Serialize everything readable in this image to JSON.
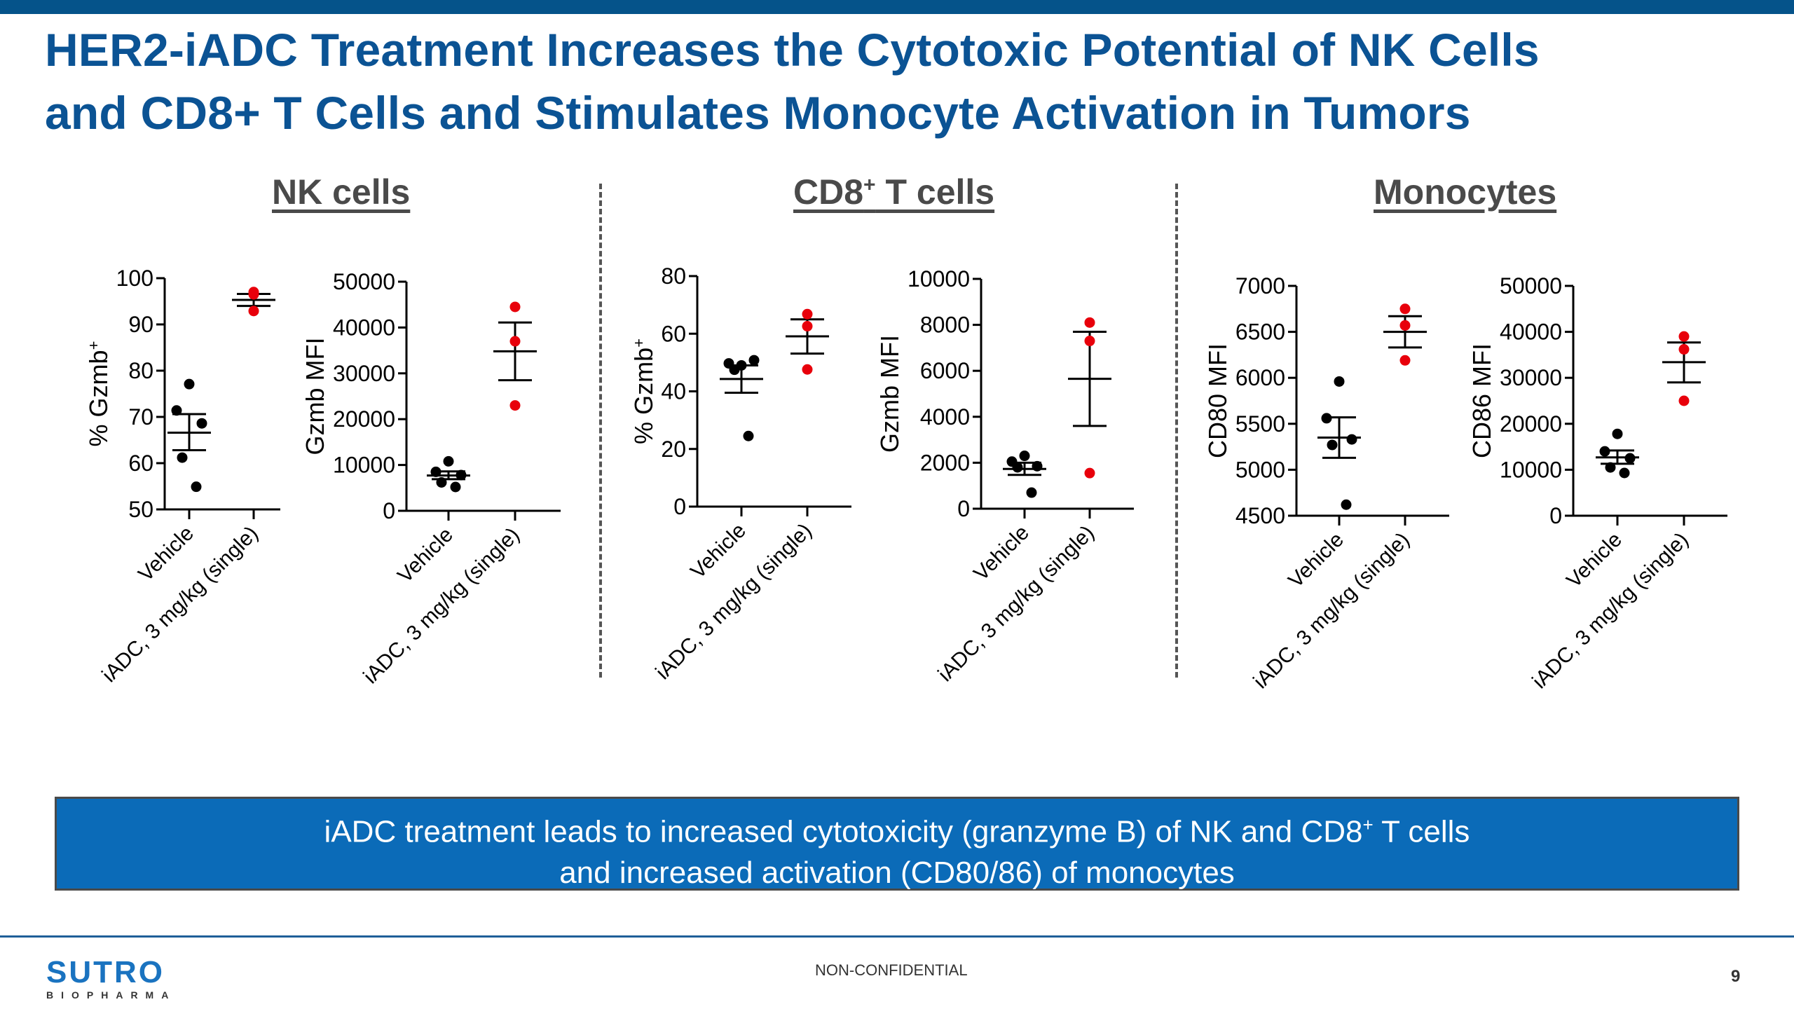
{
  "slide": {
    "title_line1": "HER2-iADC Treatment Increases the Cytotoxic Potential of NK Cells",
    "title_line2": "and CD8+ T Cells and Stimulates Monocyte Activation in Tumors",
    "sections": [
      {
        "label": "NK cells"
      },
      {
        "label_pre": "CD8",
        "label_sup": "+",
        "label_post": " T cells"
      },
      {
        "label": "Monocytes"
      }
    ],
    "banner": {
      "line1_pre": "iADC treatment leads to increased cytotoxicity (granzyme B) of NK and CD8",
      "line1_sup": "+",
      "line1_post": " T cells",
      "line2": "and increased activation (CD80/86) of monocytes"
    },
    "footer": {
      "logo_main": "SUTRO",
      "logo_sub": "BIOPHARMA",
      "classification": "NON-CONFIDENTIAL",
      "page_number": "9"
    },
    "colors": {
      "brand_blue": "#0b5394",
      "banner_blue": "#0b6bb8",
      "vehicle_color": "#000000",
      "iadc_color": "#e8000b"
    }
  },
  "chart_data": [
    {
      "id": "nk-pct",
      "type": "scatter",
      "section": "NK cells",
      "title": "",
      "xlabel": "",
      "ylabel": "% Gzmb",
      "ylabel_sup": "+",
      "categories": [
        "Vehicle",
        "iADC, 3 mg/kg (single)"
      ],
      "ylim": [
        50,
        100
      ],
      "yticks": [
        50,
        60,
        70,
        80,
        90,
        100
      ],
      "ytick_labels": [
        "50",
        "60",
        "70",
        "80",
        "90",
        "100"
      ],
      "series": [
        {
          "name": "Vehicle",
          "values": [
            77.1,
            71.4,
            68.6,
            61.2,
            54.9
          ],
          "mean": 66.6,
          "sem_upper": 70.6,
          "sem_lower": 62.8
        },
        {
          "name": "iADC, 3 mg/kg (single)",
          "values": [
            97.0,
            96.5,
            92.9
          ],
          "mean": 95.3,
          "sem_upper": 96.6,
          "sem_lower": 94.0
        }
      ]
    },
    {
      "id": "nk-mfi",
      "type": "scatter",
      "section": "NK cells",
      "title": "",
      "xlabel": "",
      "ylabel": "Gzmb MFI",
      "ylabel_sup": "",
      "categories": [
        "Vehicle",
        "iADC, 3 mg/kg (single)"
      ],
      "ylim": [
        0,
        50000
      ],
      "yticks": [
        0,
        10000,
        20000,
        30000,
        40000,
        50000
      ],
      "ytick_labels": [
        "0",
        "10000",
        "20000",
        "30000",
        "40000",
        "50000"
      ],
      "series": [
        {
          "name": "Vehicle",
          "values": [
            10800,
            8500,
            7800,
            6200,
            5200
          ],
          "mean": 7700,
          "sem_upper": 8600,
          "sem_lower": 6900
        },
        {
          "name": "iADC, 3 mg/kg (single)",
          "values": [
            44500,
            37000,
            23000
          ],
          "mean": 34800,
          "sem_upper": 41100,
          "sem_lower": 28500
        }
      ]
    },
    {
      "id": "cd8-pct",
      "type": "scatter",
      "section": "CD8+ T cells",
      "title": "",
      "xlabel": "",
      "ylabel": "% Gzmb",
      "ylabel_sup": "+",
      "categories": [
        "Vehicle",
        "iADC, 3 mg/kg (single)"
      ],
      "ylim": [
        0,
        80
      ],
      "yticks": [
        0,
        20,
        40,
        60,
        80
      ],
      "ytick_labels": [
        "0",
        "20",
        "40",
        "60",
        "80"
      ],
      "series": [
        {
          "name": "Vehicle",
          "values": [
            49.0,
            49.7,
            50.8,
            47.5,
            24.5
          ],
          "mean": 44.3,
          "sem_upper": 49.0,
          "sem_lower": 39.5
        },
        {
          "name": "iADC, 3 mg/kg (single)",
          "values": [
            66.8,
            62.6,
            47.6
          ],
          "mean": 59.1,
          "sem_upper": 65.0,
          "sem_lower": 53.1
        }
      ]
    },
    {
      "id": "cd8-mfi",
      "type": "scatter",
      "section": "CD8+ T cells",
      "title": "",
      "xlabel": "",
      "ylabel": "Gzmb MFI",
      "ylabel_sup": "",
      "categories": [
        "Vehicle",
        "iADC, 3 mg/kg (single)"
      ],
      "ylim": [
        0,
        10000
      ],
      "yticks": [
        0,
        2000,
        4000,
        6000,
        8000,
        10000
      ],
      "ytick_labels": [
        "0",
        "2000",
        "4000",
        "6000",
        "8000",
        "10000"
      ],
      "series": [
        {
          "name": "Vehicle",
          "values": [
            2300,
            2050,
            1850,
            1800,
            700
          ],
          "mean": 1730,
          "sem_upper": 2000,
          "sem_lower": 1470
        },
        {
          "name": "iADC, 3 mg/kg (single)",
          "values": [
            8100,
            7300,
            1550
          ],
          "mean": 5650,
          "sem_upper": 7700,
          "sem_lower": 3600
        }
      ]
    },
    {
      "id": "mono-cd80",
      "type": "scatter",
      "section": "Monocytes",
      "title": "",
      "xlabel": "",
      "ylabel": "CD80 MFI",
      "ylabel_sup": "",
      "categories": [
        "Vehicle",
        "iADC, 3 mg/kg (single)"
      ],
      "ylim": [
        4500,
        7000
      ],
      "yticks": [
        4500,
        5000,
        5500,
        6000,
        6500,
        7000
      ],
      "ytick_labels": [
        "4500",
        "5000",
        "5500",
        "6000",
        "6500",
        "7000"
      ],
      "series": [
        {
          "name": "Vehicle",
          "values": [
            5960,
            5560,
            5330,
            5270,
            4620
          ],
          "mean": 5350,
          "sem_upper": 5570,
          "sem_lower": 5130
        },
        {
          "name": "iADC, 3 mg/kg (single)",
          "values": [
            6750,
            6570,
            6190
          ],
          "mean": 6500,
          "sem_upper": 6670,
          "sem_lower": 6330
        }
      ]
    },
    {
      "id": "mono-cd86",
      "type": "scatter",
      "section": "Monocytes",
      "title": "",
      "xlabel": "",
      "ylabel": "CD86 MFI",
      "ylabel_sup": "",
      "categories": [
        "Vehicle",
        "iADC, 3 mg/kg (single)"
      ],
      "ylim": [
        0,
        50000
      ],
      "yticks": [
        0,
        10000,
        20000,
        30000,
        40000,
        50000
      ],
      "ytick_labels": [
        "0",
        "10000",
        "20000",
        "30000",
        "40000",
        "50000"
      ],
      "series": [
        {
          "name": "Vehicle",
          "values": [
            17800,
            14000,
            12500,
            10500,
            9300
          ],
          "mean": 12700,
          "sem_upper": 14200,
          "sem_lower": 11300
        },
        {
          "name": "iADC, 3 mg/kg (single)",
          "values": [
            39000,
            36200,
            25000
          ],
          "mean": 33400,
          "sem_upper": 37700,
          "sem_lower": 29000
        }
      ]
    }
  ]
}
